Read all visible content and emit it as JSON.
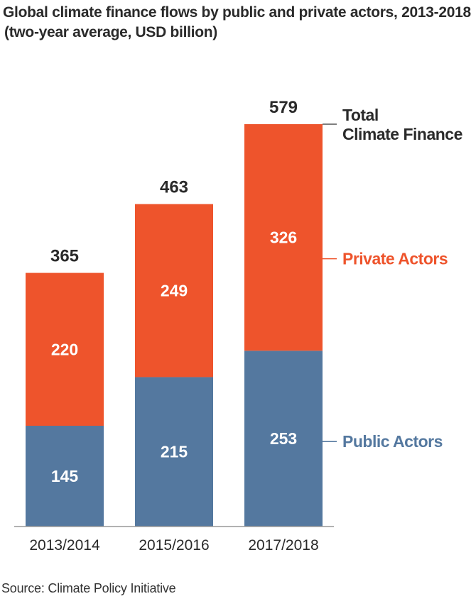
{
  "title": "Global climate finance flows by public and private actors, 2013-2018",
  "subtitle": "(two-year average, USD billion)",
  "source": "Source: Climate Policy Initiative",
  "colors": {
    "public": "#54789f",
    "private": "#ee542c",
    "text_dark": "#2a2a2a",
    "white": "#ffffff"
  },
  "chart_data": {
    "type": "bar",
    "stacked": true,
    "categories": [
      "2013/2014",
      "2015/2016",
      "2017/2018"
    ],
    "series": [
      {
        "name": "Public Actors",
        "values": [
          145,
          215,
          253
        ]
      },
      {
        "name": "Private Actors",
        "values": [
          220,
          249,
          326
        ]
      }
    ],
    "totals": [
      365,
      463,
      579
    ],
    "totals_label": [
      "Total",
      "Climate Finance"
    ],
    "ylim": [
      0,
      579
    ],
    "grid": false,
    "legend": "right"
  }
}
